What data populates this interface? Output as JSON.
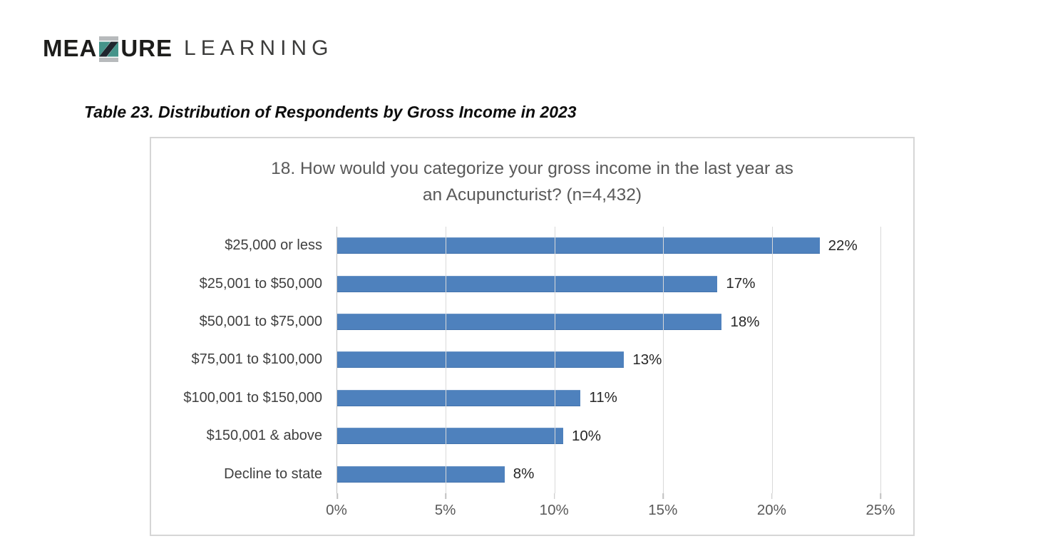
{
  "logo": {
    "word1_part1": "MEA",
    "word1_part2": "URE",
    "word2": "LEARNING"
  },
  "caption": "Table 23. Distribution of Respondents by Gross Income in 2023",
  "chart_data": {
    "type": "bar",
    "orientation": "horizontal",
    "title": "18. How would you categorize your gross income in the last year as an Acupuncturist? (n=4,432)",
    "title_line1": "18. How would you categorize your gross income in the last year as",
    "title_line2": "an Acupuncturist? (n=4,432)",
    "categories": [
      "$25,000 or less",
      "$25,001 to $50,000",
      "$50,001 to $75,000",
      "$75,001 to $100,000",
      "$100,001 to $150,000",
      "$150,001 & above",
      "Decline to state"
    ],
    "values": [
      22,
      17,
      18,
      13,
      11,
      10,
      8
    ],
    "value_labels": [
      "22%",
      "17%",
      "18%",
      "13%",
      "11%",
      "10%",
      "8%"
    ],
    "bar_lengths_pct": [
      22.2,
      17.5,
      17.7,
      13.2,
      11.2,
      10.4,
      7.7
    ],
    "axis": {
      "ticks": [
        0,
        5,
        10,
        15,
        20,
        25
      ],
      "tick_labels": [
        "0%",
        "5%",
        "10%",
        "15%",
        "20%",
        "25%"
      ],
      "max": 25,
      "grid": true
    },
    "legend": "none"
  },
  "colors": {
    "bar": "#4e81bd",
    "gridline": "#d9d9d9",
    "axis_line": "#c0c0c0",
    "title_text": "#595959",
    "category_text": "#404040",
    "value_text": "#262626",
    "tick_text": "#595959",
    "card_border": "#d6d6d6",
    "logo_dark": "#1d1d1b",
    "logo_light_text": "#3c3c3b",
    "logo_teal": "#45948a",
    "logo_gray": "#b7babc",
    "logo_navy": "#20262e"
  }
}
